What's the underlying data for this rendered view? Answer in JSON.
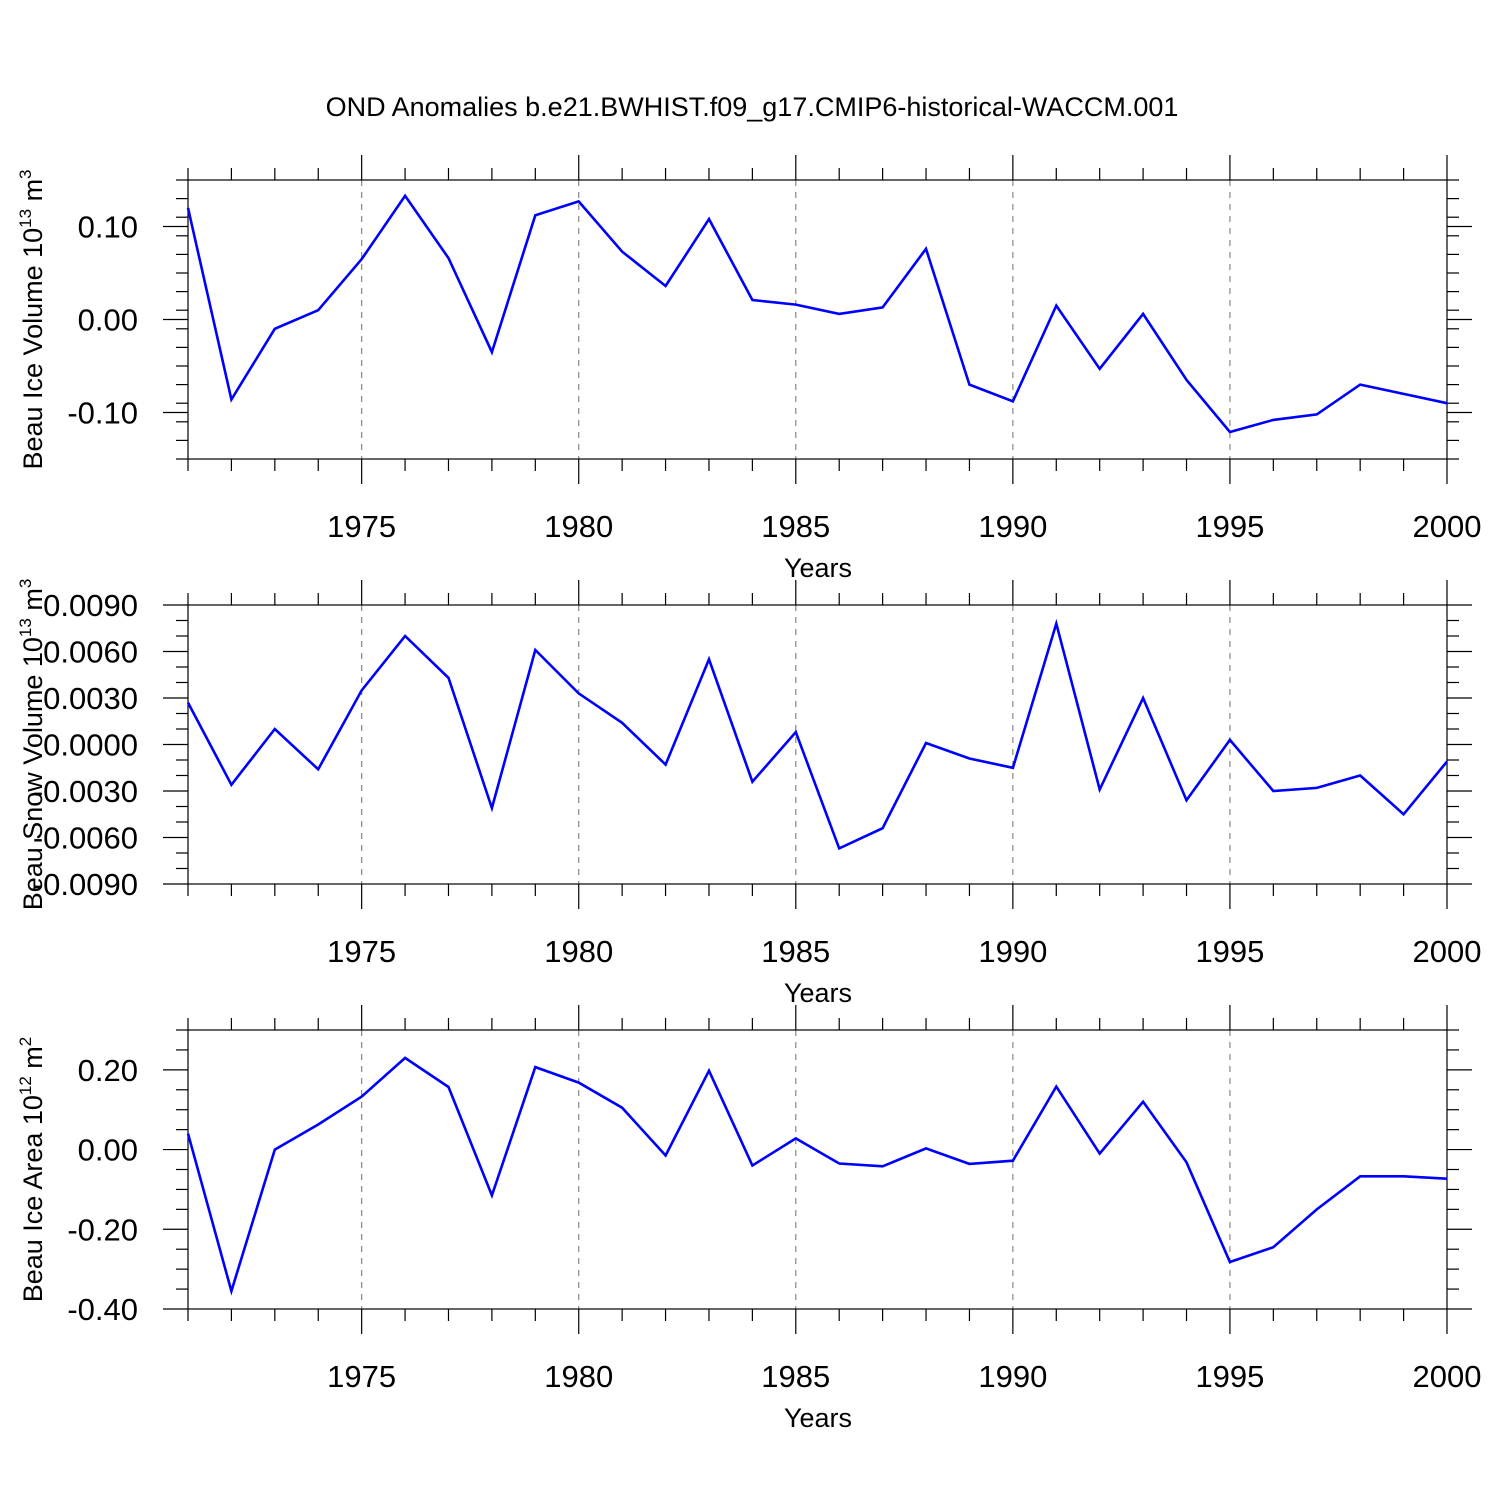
{
  "title": "OND Anomalies b.e21.BWHIST.f09_g17.CMIP6-historical-WACCM.001",
  "line_color": "#0000ff",
  "chart_data": [
    {
      "type": "line",
      "ylabel": "Beau Ice Volume 10",
      "ylabel_sup": "13",
      "ylabel_unit": " m",
      "ylabel_unit_sup": "3",
      "xlabel": "Years",
      "xlim": [
        1971,
        2000
      ],
      "ylim": [
        -0.15,
        0.15
      ],
      "yticks": [
        0.1,
        0.0,
        -0.1
      ],
      "ytick_labels": [
        "0.10",
        "0.00",
        "-0.10"
      ],
      "yminor_step": 0.02,
      "xticks": [
        1975,
        1980,
        1985,
        1990,
        1995,
        2000
      ],
      "xtick_labels": [
        "1975",
        "1980",
        "1985",
        "1990",
        "1995",
        "2000"
      ],
      "x": [
        1971,
        1972,
        1973,
        1974,
        1975,
        1976,
        1977,
        1978,
        1979,
        1980,
        1981,
        1982,
        1983,
        1984,
        1985,
        1986,
        1987,
        1988,
        1989,
        1990,
        1991,
        1992,
        1993,
        1994,
        1995,
        1996,
        1997,
        1998,
        1999,
        2000
      ],
      "values": [
        0.12,
        -0.086,
        -0.01,
        0.01,
        0.065,
        0.133,
        0.066,
        -0.035,
        0.112,
        0.127,
        0.073,
        0.036,
        0.108,
        0.021,
        0.016,
        0.006,
        0.013,
        0.076,
        -0.07,
        -0.088,
        0.015,
        -0.053,
        0.006,
        -0.065,
        -0.121,
        -0.108,
        -0.102,
        -0.07,
        -0.08,
        -0.09
      ]
    },
    {
      "type": "line",
      "ylabel": "Beau Snow Volume 10",
      "ylabel_sup": "13",
      "ylabel_unit": " m",
      "ylabel_unit_sup": "3",
      "xlabel": "Years",
      "xlim": [
        1971,
        2000
      ],
      "ylim": [
        -0.009,
        0.009
      ],
      "yticks": [
        0.009,
        0.006,
        0.003,
        0.0,
        -0.003,
        -0.006,
        -0.009
      ],
      "ytick_labels": [
        "0.0090",
        "0.0060",
        "0.0030",
        "0.0000",
        "-0.0030",
        "-0.0060",
        "-0.0090"
      ],
      "yminor_step": 0.001,
      "xticks": [
        1975,
        1980,
        1985,
        1990,
        1995,
        2000
      ],
      "xtick_labels": [
        "1975",
        "1980",
        "1985",
        "1990",
        "1995",
        "2000"
      ],
      "x": [
        1971,
        1972,
        1973,
        1974,
        1975,
        1976,
        1977,
        1978,
        1979,
        1980,
        1981,
        1982,
        1983,
        1984,
        1985,
        1986,
        1987,
        1988,
        1989,
        1990,
        1991,
        1992,
        1993,
        1994,
        1995,
        1996,
        1997,
        1998,
        1999,
        2000
      ],
      "values": [
        0.0027,
        -0.0026,
        0.001,
        -0.0016,
        0.0035,
        0.007,
        0.0043,
        -0.0041,
        0.0061,
        0.0033,
        0.0014,
        -0.0013,
        0.0055,
        -0.0024,
        0.0008,
        -0.0067,
        -0.0054,
        0.0001,
        -0.0009,
        -0.0015,
        0.0078,
        -0.0029,
        0.003,
        -0.0036,
        0.0003,
        -0.003,
        -0.0028,
        -0.002,
        -0.0045,
        -0.0011
      ]
    },
    {
      "type": "line",
      "ylabel": "Beau Ice Area 10",
      "ylabel_sup": "12",
      "ylabel_unit": " m",
      "ylabel_unit_sup": "2",
      "xlabel": "Years",
      "xlim": [
        1971,
        2000
      ],
      "ylim": [
        -0.4,
        0.3
      ],
      "yticks": [
        0.2,
        0.0,
        -0.2,
        -0.4
      ],
      "ytick_labels": [
        "0.20",
        "0.00",
        "-0.20",
        "-0.40"
      ],
      "yminor_step": 0.05,
      "xticks": [
        1975,
        1980,
        1985,
        1990,
        1995,
        2000
      ],
      "xtick_labels": [
        "1975",
        "1980",
        "1985",
        "1990",
        "1995",
        "2000"
      ],
      "x": [
        1971,
        1972,
        1973,
        1974,
        1975,
        1976,
        1977,
        1978,
        1979,
        1980,
        1981,
        1982,
        1983,
        1984,
        1985,
        1986,
        1987,
        1988,
        1989,
        1990,
        1991,
        1992,
        1993,
        1994,
        1995,
        1996,
        1997,
        1998,
        1999,
        2000
      ],
      "values": [
        0.04,
        -0.355,
        0.0,
        0.063,
        0.133,
        0.23,
        0.157,
        -0.115,
        0.207,
        0.168,
        0.105,
        -0.015,
        0.198,
        -0.04,
        0.028,
        -0.035,
        -0.042,
        0.003,
        -0.036,
        -0.028,
        0.158,
        -0.01,
        0.12,
        -0.032,
        -0.282,
        -0.245,
        -0.15,
        -0.067,
        -0.067,
        -0.073
      ]
    }
  ]
}
